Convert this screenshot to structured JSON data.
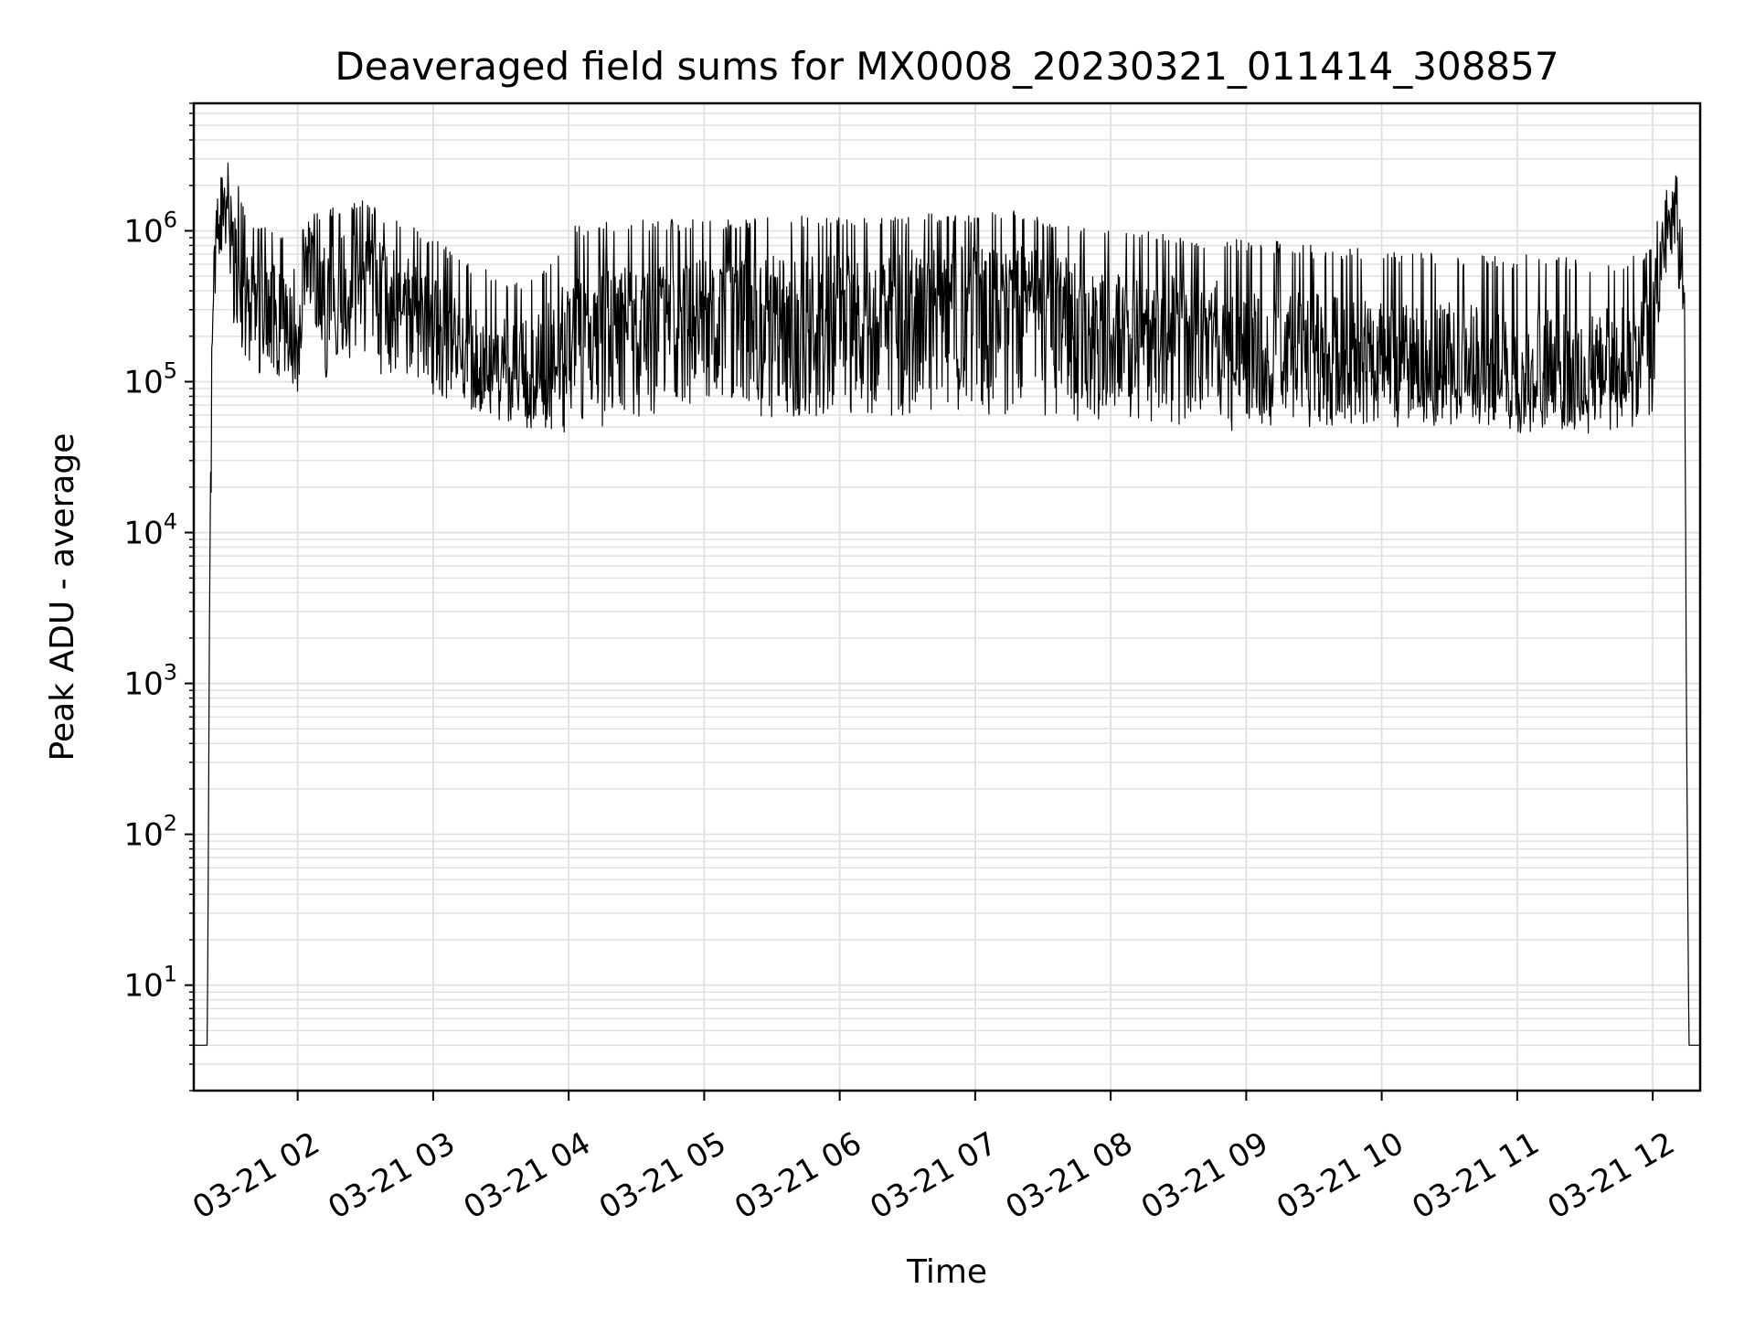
{
  "chart_data": {
    "type": "line",
    "title": "Deaveraged field sums for MX0008_20230321_011414_308857",
    "xlabel": "Time",
    "ylabel": "Peak ADU - average",
    "yscale": "log",
    "ylim": [
      2,
      7000000
    ],
    "xlim": [
      "03-21 01:14",
      "03-21 12:21"
    ],
    "xticks": [
      {
        "value": "03-21 02:00",
        "label": "03-21 02"
      },
      {
        "value": "03-21 03:00",
        "label": "03-21 03"
      },
      {
        "value": "03-21 04:00",
        "label": "03-21 04"
      },
      {
        "value": "03-21 05:00",
        "label": "03-21 05"
      },
      {
        "value": "03-21 06:00",
        "label": "03-21 06"
      },
      {
        "value": "03-21 07:00",
        "label": "03-21 07"
      },
      {
        "value": "03-21 08:00",
        "label": "03-21 08"
      },
      {
        "value": "03-21 09:00",
        "label": "03-21 09"
      },
      {
        "value": "03-21 10:00",
        "label": "03-21 10"
      },
      {
        "value": "03-21 11:00",
        "label": "03-21 11"
      },
      {
        "value": "03-21 12:00",
        "label": "03-21 12"
      }
    ],
    "yticks": [
      {
        "value": 10,
        "base": "10",
        "exp": "1"
      },
      {
        "value": 100,
        "base": "10",
        "exp": "2"
      },
      {
        "value": 1000,
        "base": "10",
        "exp": "3"
      },
      {
        "value": 10000,
        "base": "10",
        "exp": "4"
      },
      {
        "value": 100000,
        "base": "10",
        "exp": "5"
      },
      {
        "value": 1000000,
        "base": "10",
        "exp": "6"
      }
    ],
    "grid": true,
    "line_color": "#000000",
    "grid_color": "#e0e0e0",
    "series": [
      {
        "x": [
          "03-21 01:15",
          "03-21 01:18",
          "03-21 01:20",
          "03-21 01:21",
          "03-21 01:22",
          "03-21 01:23",
          "03-21 01:25",
          "03-21 01:28",
          "03-21 01:30",
          "03-21 01:33",
          "03-21 01:36",
          "03-21 01:40",
          "03-21 01:45",
          "03-21 01:50",
          "03-21 01:55",
          "03-21 02:00",
          "03-21 02:03",
          "03-21 02:05",
          "03-21 02:08",
          "03-21 02:12",
          "03-21 02:20",
          "03-21 02:30",
          "03-21 02:40",
          "03-21 02:50",
          "03-21 03:00",
          "03-21 03:10",
          "03-21 03:20",
          "03-21 03:30",
          "03-21 03:40",
          "03-21 03:50",
          "03-21 04:00",
          "03-21 04:15",
          "03-21 04:30",
          "03-21 04:45",
          "03-21 05:00",
          "03-21 05:15",
          "03-21 05:30",
          "03-21 05:45",
          "03-21 06:00",
          "03-21 06:15",
          "03-21 06:30",
          "03-21 06:45",
          "03-21 07:00",
          "03-21 07:15",
          "03-21 07:30",
          "03-21 07:45",
          "03-21 08:00",
          "03-21 08:15",
          "03-21 08:30",
          "03-21 08:45",
          "03-21 09:00",
          "03-21 09:15",
          "03-21 09:30",
          "03-21 09:45",
          "03-21 10:00",
          "03-21 10:15",
          "03-21 10:30",
          "03-21 10:45",
          "03-21 11:00",
          "03-21 11:15",
          "03-21 11:30",
          "03-21 11:45",
          "03-21 11:55",
          "03-21 12:00",
          "03-21 12:03",
          "03-21 12:06",
          "03-21 12:10",
          "03-21 12:12",
          "03-21 12:14",
          "03-21 12:16",
          "03-21 12:18",
          "03-21 12:20"
        ],
        "center": [
          4,
          4,
          4,
          3000,
          100000,
          500000,
          1200000,
          1500000,
          1000000,
          600000,
          400000,
          350000,
          350000,
          300000,
          250000,
          100000,
          700000,
          1000000,
          500000,
          400000,
          450000,
          500000,
          450000,
          350000,
          250000,
          150000,
          120000,
          110000,
          100000,
          120000,
          150000,
          200000,
          220000,
          250000,
          250000,
          280000,
          300000,
          300000,
          300000,
          320000,
          350000,
          350000,
          400000,
          400000,
          350000,
          300000,
          250000,
          220000,
          200000,
          180000,
          150000,
          150000,
          140000,
          130000,
          120000,
          120000,
          110000,
          110000,
          100000,
          100000,
          100000,
          100000,
          150000,
          250000,
          500000,
          1200000,
          1500000,
          800000,
          200000,
          4,
          4,
          4
        ],
        "low": [
          4,
          4,
          4,
          1000,
          50000,
          200000,
          600000,
          800000,
          300000,
          200000,
          150000,
          120000,
          110000,
          100000,
          80000,
          70000,
          200000,
          300000,
          150000,
          100000,
          150000,
          120000,
          100000,
          90000,
          80000,
          65000,
          60000,
          55000,
          50000,
          48000,
          45000,
          50000,
          55000,
          60000,
          55000,
          55000,
          55000,
          58000,
          60000,
          60000,
          60000,
          62000,
          60000,
          60000,
          58000,
          55000,
          55000,
          52000,
          50000,
          48000,
          47000,
          48000,
          50000,
          52000,
          50000,
          50000,
          50000,
          48000,
          45000,
          45000,
          45000,
          45000,
          50000,
          60000,
          200000,
          500000,
          800000,
          300000,
          50000,
          4,
          4,
          4
        ],
        "high": [
          4,
          4,
          4,
          5000,
          200000,
          1000000,
          2000000,
          2800000,
          3000000,
          2500000,
          1500000,
          1200000,
          1100000,
          1000000,
          900000,
          500000,
          1300000,
          1400000,
          1300000,
          1400000,
          1500000,
          1600000,
          1200000,
          1100000,
          900000,
          700000,
          600000,
          500000,
          450000,
          600000,
          1100000,
          1200000,
          1200000,
          1200000,
          1200000,
          1200000,
          1250000,
          1250000,
          1250000,
          1250000,
          1300000,
          1300000,
          1300000,
          1400000,
          1200000,
          1100000,
          1000000,
          1000000,
          950000,
          900000,
          900000,
          850000,
          800000,
          800000,
          750000,
          750000,
          700000,
          700000,
          700000,
          700000,
          650000,
          650000,
          700000,
          800000,
          1500000,
          2500000,
          2500000,
          2000000,
          600000,
          4,
          4,
          4
        ]
      }
    ]
  }
}
